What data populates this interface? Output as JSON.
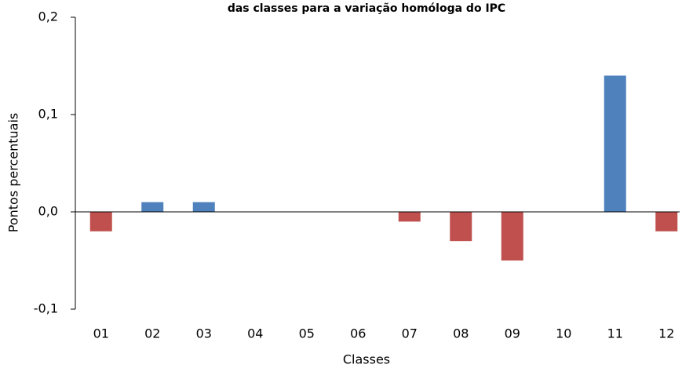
{
  "chart_data": {
    "type": "bar",
    "title": "das classes para a variação homóloga do IPC",
    "x_label": "Classes",
    "y_label": "Pontos percentuais",
    "categories": [
      "01",
      "02",
      "03",
      "04",
      "05",
      "06",
      "07",
      "08",
      "09",
      "10",
      "11",
      "12"
    ],
    "values": [
      -0.02,
      0.01,
      0.01,
      0,
      0,
      0,
      -0.01,
      -0.03,
      -0.05,
      0,
      0.14,
      -0.02
    ],
    "colors": [
      "#c0504d",
      "#4f81bd",
      "#4f81bd",
      "#4f81bd",
      "#4f81bd",
      "#4f81bd",
      "#c0504d",
      "#c0504d",
      "#c0504d",
      "#4f81bd",
      "#4f81bd",
      "#c0504d"
    ],
    "ylim": [
      -0.1,
      0.2
    ],
    "yticks": [
      {
        "value": -0.1,
        "label": "-0,1"
      },
      {
        "value": 0,
        "label": "0,0"
      },
      {
        "value": 0.1,
        "label": "0,1"
      },
      {
        "value": 0.2,
        "label": "0,2"
      }
    ],
    "grid": false
  }
}
